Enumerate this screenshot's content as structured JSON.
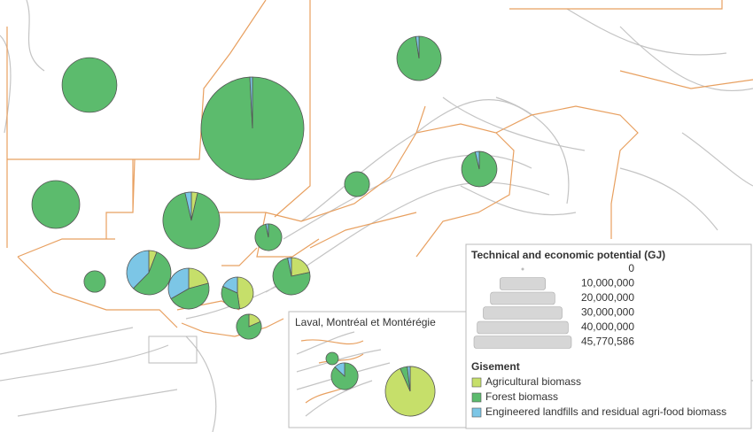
{
  "chart_data": {
    "type": "pie-map",
    "series": [
      {
        "name": "Agricultural biomass",
        "color": "#c6df6a"
      },
      {
        "name": "Forest biomass",
        "color": "#5cbb6d"
      },
      {
        "name": "Engineered landfills and residual agri-food biomass",
        "color": "#7cc6e6"
      }
    ],
    "pies": [
      {
        "values": [
          0,
          13000000,
          0
        ]
      },
      {
        "values": [
          0,
          45400000,
          370586
        ]
      },
      {
        "values": [
          0,
          8300000,
          200000
        ]
      },
      {
        "values": [
          0,
          9900000,
          0
        ]
      },
      {
        "values": [
          500000,
          13000000,
          500000
        ]
      },
      {
        "values": [
          0,
          2700000,
          0
        ]
      },
      {
        "values": [
          0,
          5200000,
          200000
        ]
      },
      {
        "values": [
          0,
          3000000,
          100000
        ]
      },
      {
        "values": [
          500000,
          4800000,
          3200000
        ]
      },
      {
        "values": [
          0,
          2000000,
          0
        ]
      },
      {
        "values": [
          1500000,
          3300000,
          2400000
        ]
      },
      {
        "values": [
          1300000,
          4500000,
          200000
        ]
      },
      {
        "values": [
          2100000,
          1500000,
          800000
        ]
      },
      {
        "values": [
          500000,
          2200000,
          0
        ]
      }
    ],
    "inset": {
      "title": "Laval, Montréal et Montérégie",
      "pies": [
        {
          "values": [
            0,
            670000,
            0
          ]
        },
        {
          "values": [
            0,
            2700000,
            400000
          ]
        },
        {
          "values": [
            10000000,
            500000,
            200000
          ]
        }
      ]
    },
    "size_legend": {
      "title": "Technical and economic potential (GJ)",
      "entries": [
        {
          "value": 0,
          "label": "0"
        },
        {
          "value": 10000000,
          "label": "10,000,000"
        },
        {
          "value": 20000000,
          "label": "20,000,000"
        },
        {
          "value": 30000000,
          "label": "30,000,000"
        },
        {
          "value": 40000000,
          "label": "40,000,000"
        },
        {
          "value": 45770586,
          "label": "45,770,586"
        }
      ]
    },
    "color_legend_title": "Gisement"
  }
}
